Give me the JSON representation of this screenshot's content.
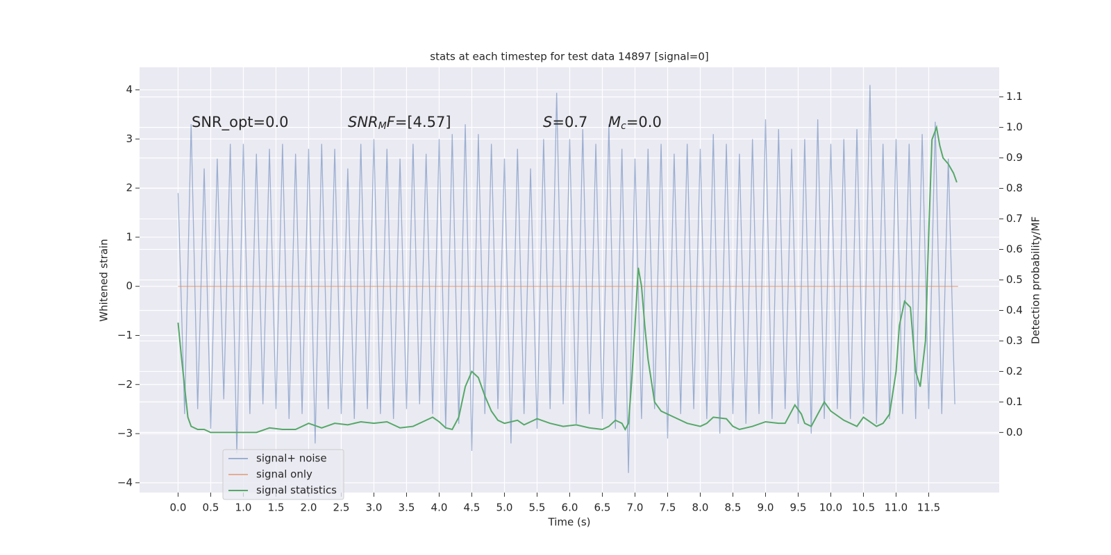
{
  "chart_data": {
    "type": "line",
    "title": "stats at each timestep for test data 14897 [signal=0]",
    "x_label": "Time (s)",
    "y_label": "Whitened strain",
    "y2_label": "Detection probability/MF",
    "xlim": [
      -0.59,
      12.58
    ],
    "ylim": [
      -4.2,
      4.46
    ],
    "y2lim": [
      -0.197,
      1.197
    ],
    "grid": true,
    "legend": "lower left",
    "background": "#eaeaf2",
    "xticks": [
      {
        "value": 0,
        "label": "0.0"
      },
      {
        "value": 0.5,
        "label": "0.5"
      },
      {
        "value": 1,
        "label": "1.0"
      },
      {
        "value": 1.5,
        "label": "1.5"
      },
      {
        "value": 2,
        "label": "2.0"
      },
      {
        "value": 2.5,
        "label": "2.5"
      },
      {
        "value": 3,
        "label": "3.0"
      },
      {
        "value": 3.5,
        "label": "3.5"
      },
      {
        "value": 4,
        "label": "4.0"
      },
      {
        "value": 4.5,
        "label": "4.5"
      },
      {
        "value": 5,
        "label": "5.0"
      },
      {
        "value": 5.5,
        "label": "5.5"
      },
      {
        "value": 6,
        "label": "6.0"
      },
      {
        "value": 6.5,
        "label": "6.5"
      },
      {
        "value": 7,
        "label": "7.0"
      },
      {
        "value": 7.5,
        "label": "7.5"
      },
      {
        "value": 8,
        "label": "8.0"
      },
      {
        "value": 8.5,
        "label": "8.5"
      },
      {
        "value": 9,
        "label": "9.0"
      },
      {
        "value": 9.5,
        "label": "9.5"
      },
      {
        "value": 10,
        "label": "10.0"
      },
      {
        "value": 10.5,
        "label": "10.5"
      },
      {
        "value": 11,
        "label": "11.0"
      },
      {
        "value": 11.5,
        "label": "11.5"
      }
    ],
    "yticks": [
      {
        "value": -4,
        "label": "−4"
      },
      {
        "value": -3,
        "label": "−3"
      },
      {
        "value": -2,
        "label": "−2"
      },
      {
        "value": -1,
        "label": "−1"
      },
      0,
      1,
      2,
      3,
      4
    ],
    "y2ticks": [
      {
        "value": 0,
        "label": "0.0"
      },
      0.1,
      0.2,
      0.3,
      0.4,
      0.5,
      0.6,
      0.7,
      0.8,
      0.9,
      {
        "value": 1,
        "label": "1.0"
      },
      1.1
    ],
    "annotations": [
      [
        {
          "text": "SNR_opt=0.0"
        }
      ],
      [
        {
          "text": "SNR",
          "italic": true
        },
        {
          "text": "M",
          "italic": true,
          "sub": true
        },
        {
          "text": "F",
          "italic": true
        },
        {
          "text": "=[4.57]"
        }
      ],
      [
        {
          "text": "S",
          "italic": true
        },
        {
          "text": "=0.7"
        }
      ],
      [
        {
          "text": "M",
          "italic": true
        },
        {
          "text": "c",
          "italic": true,
          "sub": true
        },
        {
          "text": "=0.0"
        }
      ]
    ],
    "series": [
      {
        "name": "signal+ noise",
        "color": "#4c72b0",
        "opacity": 0.5,
        "x": [
          0,
          0.1,
          0.2,
          0.3,
          0.4,
          0.5,
          0.6,
          0.7,
          0.8,
          0.9,
          1,
          1.1,
          1.2,
          1.3,
          1.4,
          1.5,
          1.6,
          1.7,
          1.8,
          1.9,
          2,
          2.1,
          2.2,
          2.3,
          2.4,
          2.5,
          2.6,
          2.7,
          2.8,
          2.9,
          3,
          3.1,
          3.2,
          3.3,
          3.4,
          3.5,
          3.6,
          3.7,
          3.8,
          3.9,
          4,
          4.1,
          4.2,
          4.3,
          4.4,
          4.5,
          4.6,
          4.7,
          4.8,
          4.9,
          5,
          5.1,
          5.2,
          5.3,
          5.4,
          5.5,
          5.6,
          5.7,
          5.8,
          5.9,
          6,
          6.1,
          6.2,
          6.3,
          6.4,
          6.5,
          6.6,
          6.7,
          6.8,
          6.9,
          7,
          7.1,
          7.2,
          7.3,
          7.4,
          7.5,
          7.6,
          7.7,
          7.8,
          7.9,
          8,
          8.1,
          8.2,
          8.3,
          8.4,
          8.5,
          8.6,
          8.7,
          8.8,
          8.9,
          9,
          9.1,
          9.2,
          9.3,
          9.4,
          9.5,
          9.6,
          9.7,
          9.8,
          9.9,
          10,
          10.1,
          10.2,
          10.3,
          10.4,
          10.5,
          10.6,
          10.7,
          10.8,
          10.9,
          11,
          11.1,
          11.2,
          11.3,
          11.4,
          11.5,
          11.6,
          11.7,
          11.8,
          11.9
        ],
        "values": [
          1.9,
          -2.6,
          3.3,
          -2.5,
          2.4,
          -2.9,
          2.6,
          -2.3,
          2.9,
          -3.4,
          2.9,
          -2.6,
          2.7,
          -2.4,
          2.8,
          -2.5,
          2.9,
          -2.7,
          2.7,
          -2.6,
          2.8,
          -3.2,
          2.9,
          -2.5,
          2.8,
          -2.6,
          2.4,
          -2.7,
          2.9,
          -2.5,
          3.0,
          -2.6,
          2.8,
          -2.7,
          2.6,
          -2.5,
          2.9,
          -2.4,
          2.7,
          -2.6,
          3.0,
          -2.9,
          3.1,
          -2.8,
          3.3,
          -3.35,
          3.1,
          -2.6,
          2.9,
          -2.5,
          2.6,
          -3.2,
          2.8,
          -2.6,
          2.4,
          -2.9,
          3.0,
          -2.5,
          3.94,
          -2.4,
          3.0,
          -2.8,
          3.2,
          -2.6,
          2.9,
          -2.7,
          3.3,
          -2.9,
          2.8,
          -3.8,
          2.6,
          -2.7,
          2.8,
          -2.5,
          2.9,
          -3.1,
          2.7,
          -2.6,
          2.9,
          -2.5,
          2.8,
          -2.7,
          3.1,
          -3.0,
          2.9,
          -2.6,
          2.7,
          -2.8,
          3.0,
          -2.6,
          3.4,
          -2.7,
          3.2,
          -2.5,
          2.8,
          -2.8,
          3.0,
          -3.0,
          3.4,
          -2.7,
          2.9,
          -2.5,
          3.0,
          -2.7,
          3.2,
          -2.6,
          4.1,
          -2.8,
          2.9,
          -2.7,
          3.0,
          -2.6,
          2.9,
          -2.7,
          3.1,
          -2.5,
          3.35,
          -2.6,
          2.6,
          -2.4
        ]
      },
      {
        "name": "signal only",
        "color": "#dd8452",
        "opacity": 0.6,
        "x": [
          0,
          11.95
        ],
        "values": [
          0,
          0
        ]
      },
      {
        "name": "signal statistics",
        "color": "#55a868",
        "opacity": 1,
        "axis": "y2",
        "x": [
          0,
          0.05,
          0.1,
          0.15,
          0.2,
          0.3,
          0.4,
          0.5,
          0.6,
          0.8,
          1,
          1.2,
          1.4,
          1.6,
          1.8,
          2,
          2.2,
          2.4,
          2.6,
          2.8,
          3,
          3.2,
          3.4,
          3.6,
          3.8,
          3.9,
          4,
          4.1,
          4.2,
          4.3,
          4.4,
          4.5,
          4.6,
          4.7,
          4.8,
          4.9,
          5,
          5.1,
          5.2,
          5.3,
          5.5,
          5.7,
          5.9,
          6.1,
          6.3,
          6.5,
          6.6,
          6.7,
          6.8,
          6.85,
          6.9,
          6.95,
          7,
          7.05,
          7.1,
          7.15,
          7.2,
          7.3,
          7.4,
          7.6,
          7.8,
          8,
          8.1,
          8.2,
          8.4,
          8.5,
          8.6,
          8.8,
          9,
          9.2,
          9.3,
          9.45,
          9.55,
          9.6,
          9.7,
          9.8,
          9.9,
          10,
          10.2,
          10.4,
          10.5,
          10.7,
          10.8,
          10.9,
          11,
          11.05,
          11.13,
          11.22,
          11.3,
          11.37,
          11.45,
          11.5,
          11.55,
          11.62,
          11.67,
          11.72,
          11.8,
          11.88,
          11.93
        ],
        "values": [
          0.36,
          0.25,
          0.15,
          0.05,
          0.02,
          0.01,
          0.01,
          0,
          0,
          0,
          0,
          0,
          0.015,
          0.01,
          0.01,
          0.03,
          0.015,
          0.03,
          0.025,
          0.035,
          0.03,
          0.035,
          0.015,
          0.02,
          0.04,
          0.05,
          0.035,
          0.015,
          0.01,
          0.05,
          0.15,
          0.2,
          0.18,
          0.12,
          0.07,
          0.04,
          0.03,
          0.035,
          0.04,
          0.025,
          0.045,
          0.03,
          0.02,
          0.025,
          0.015,
          0.01,
          0.02,
          0.04,
          0.03,
          0.01,
          0.03,
          0.17,
          0.35,
          0.54,
          0.48,
          0.35,
          0.24,
          0.1,
          0.07,
          0.05,
          0.03,
          0.02,
          0.03,
          0.05,
          0.045,
          0.02,
          0.01,
          0.02,
          0.035,
          0.03,
          0.03,
          0.09,
          0.06,
          0.03,
          0.02,
          0.06,
          0.1,
          0.07,
          0.04,
          0.02,
          0.05,
          0.02,
          0.03,
          0.06,
          0.2,
          0.35,
          0.43,
          0.41,
          0.2,
          0.15,
          0.3,
          0.65,
          0.96,
          1.0,
          0.94,
          0.9,
          0.88,
          0.85,
          0.82
        ]
      }
    ]
  }
}
